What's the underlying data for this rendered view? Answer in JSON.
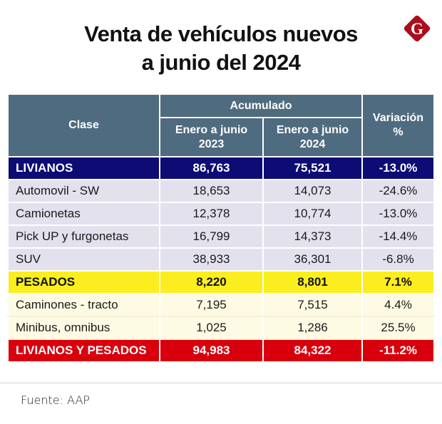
{
  "header": {
    "title_line1": "Venta de vehículos nuevos",
    "title_line2": "a junio del 2024",
    "logo_letter": "G",
    "logo_icon": "brand-logo-diamond-icon"
  },
  "colors": {
    "header_bg": "#4f6b80",
    "livianos_bg": "#0d0c74",
    "livianos_sub_bg": "#e3e1ee",
    "pesados_bg": "#fbee1e",
    "pesados_sub_bg": "#fdfbe4",
    "total_bg": "#d9000d",
    "logo_bg": "#a8101c"
  },
  "table": {
    "headers": {
      "clase": "Clase",
      "acumulado": "Acumulado",
      "col_2023": "Enero a junio 2023",
      "col_2023_line1": "Enero a junio",
      "col_2023_line2": "2023",
      "col_2024_line1": "Enero a junio",
      "col_2024_line2": "2024",
      "variacion_line1": "Variación",
      "variacion_line2": "%"
    },
    "rows": [
      {
        "type": "group-blue",
        "clase": "LIVIANOS",
        "v2023": "86,763",
        "v2024": "75,521",
        "variacion": "-13.0%"
      },
      {
        "type": "sub-blue",
        "clase": "Automovil - SW",
        "v2023": "18,653",
        "v2024": "14,073",
        "variacion": "-24.6%"
      },
      {
        "type": "sub-blue",
        "clase": "Camionetas",
        "v2023": "12,378",
        "v2024": "10,774",
        "variacion": "-13.0%"
      },
      {
        "type": "sub-blue",
        "clase": "Pick UP y furgonetas",
        "v2023": "16,799",
        "v2024": "14,373",
        "variacion": "-14.4%"
      },
      {
        "type": "sub-blue",
        "clase": "SUV",
        "v2023": "38,933",
        "v2024": "36,301",
        "variacion": "-6.8%"
      },
      {
        "type": "group-yellow",
        "clase": "PESADOS",
        "v2023": "8,220",
        "v2024": "8,801",
        "variacion": "7.1%"
      },
      {
        "type": "sub-yellow",
        "clase": "Caminones - tracto",
        "v2023": "7,195",
        "v2024": "7,515",
        "variacion": "4.4%"
      },
      {
        "type": "sub-yellow",
        "clase": "Minibus, omnibus",
        "v2023": "1,025",
        "v2024": "1,286",
        "variacion": "25.5%"
      },
      {
        "type": "total",
        "clase": "LIVIANOS Y PESADOS",
        "v2023": "94,983",
        "v2024": "84,322",
        "variacion": "-11.2%"
      }
    ]
  },
  "footer": {
    "source": "Fuente: AAP"
  }
}
